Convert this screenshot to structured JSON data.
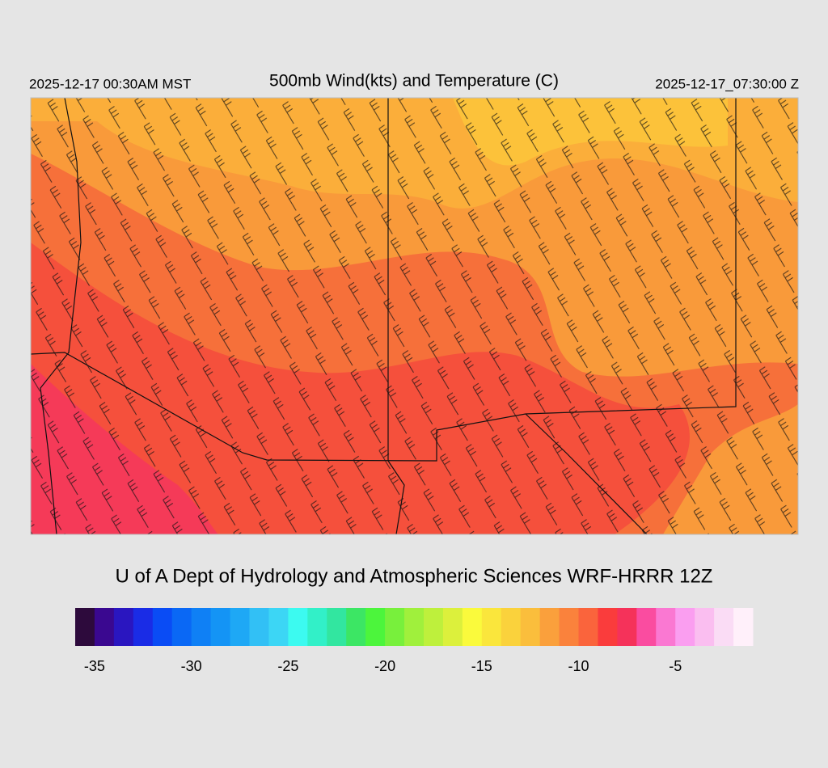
{
  "header": {
    "local_time": "2025-12-17 00:30AM MST",
    "title": "500mb Wind(kts) and Temperature (C)",
    "valid_time": "2025-12-17_07:30:00 Z"
  },
  "footer": {
    "credit": "U of A Dept of Hydrology and Atmospheric Sciences WRF-HRRR 12Z"
  },
  "colorbar": {
    "range": [
      -36,
      -1
    ],
    "ticks": [
      -35,
      -30,
      -25,
      -20,
      -15,
      -10,
      -5
    ],
    "colors": [
      "#2d0a3c",
      "#3a0890",
      "#2a16c0",
      "#1a2ce6",
      "#0a4cf5",
      "#0a68f5",
      "#0f80f5",
      "#1494f5",
      "#1ea8f5",
      "#32c0f5",
      "#3cd6f5",
      "#3cfaf0",
      "#32f0c8",
      "#32e6a0",
      "#3ce664",
      "#4cf53c",
      "#78f03c",
      "#a0f03c",
      "#bef03c",
      "#dcf03c",
      "#fafa3c",
      "#fae63c",
      "#fad23c",
      "#fabe3c",
      "#faa03c",
      "#fa823c",
      "#fa643c",
      "#fa3c3c",
      "#f5325a",
      "#fa4ca0",
      "#fa78d2",
      "#fa9ef0",
      "#fabef0",
      "#fadcf5",
      "#fff0fa"
    ]
  }
}
